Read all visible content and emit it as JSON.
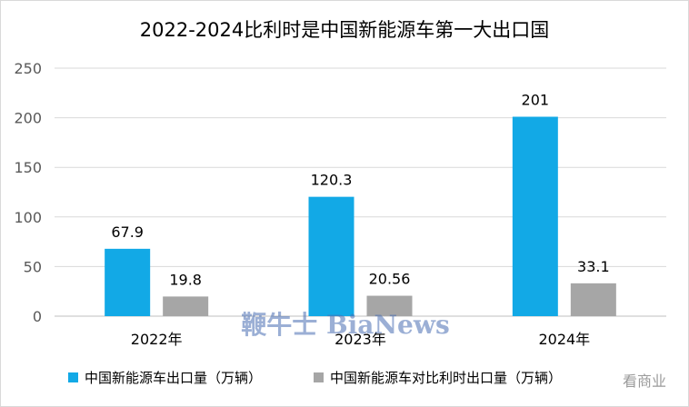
{
  "chart_data": {
    "type": "bar",
    "title": "2022-2024比利时是中国新能源车第一大出口国",
    "categories": [
      "2022年",
      "2023年",
      "2024年"
    ],
    "series": [
      {
        "name": "中国新能源车出口量（万辆）",
        "values": [
          67.9,
          120.3,
          201
        ],
        "labels": [
          "67.9",
          "120.3",
          "201"
        ],
        "color": "#12A9E6"
      },
      {
        "name": "中国新能源车对比利时出口量（万辆）",
        "values": [
          19.8,
          20.56,
          33.1
        ],
        "labels": [
          "19.8",
          "20.56",
          "33.1"
        ],
        "color": "#A6A6A6"
      }
    ],
    "ylim": [
      0,
      250
    ],
    "yticks": [
      0,
      50,
      100,
      150,
      200,
      250
    ],
    "grid": true,
    "legend_position": "bottom"
  },
  "watermark": {
    "text": "鞭牛士 BiaNews",
    "corner_text": "看商业"
  }
}
